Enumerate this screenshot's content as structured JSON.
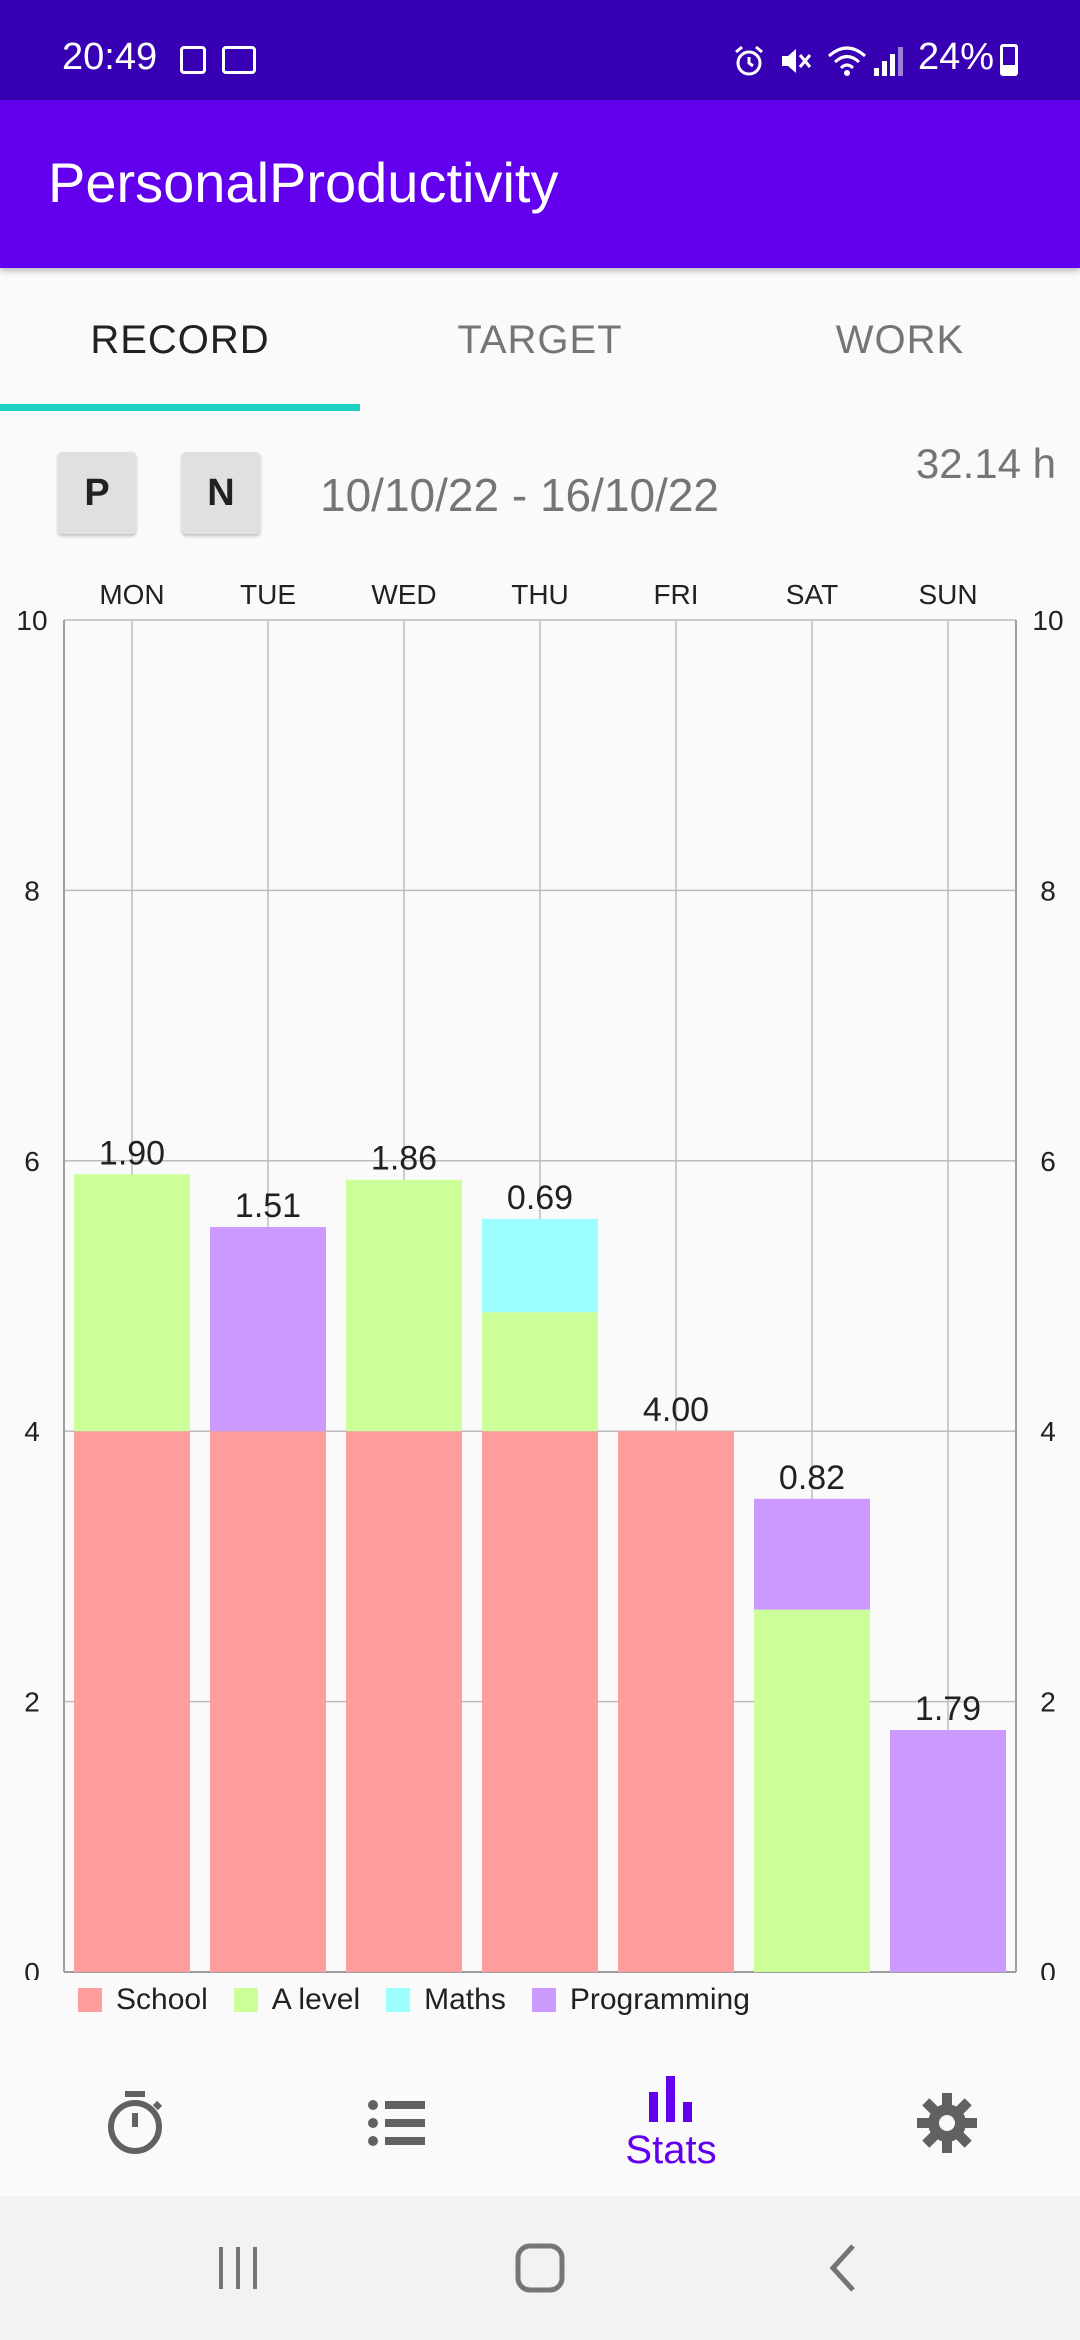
{
  "status_bar": {
    "time": "20:49",
    "battery": "24%"
  },
  "app_bar": {
    "title": "PersonalProductivity"
  },
  "tabs": [
    {
      "label": "RECORD",
      "active": true
    },
    {
      "label": "TARGET",
      "active": false
    },
    {
      "label": "WORK",
      "active": false
    }
  ],
  "week": {
    "prev_label": "P",
    "next_label": "N",
    "date_range": "10/10/22 - 16/10/22",
    "total": "32.14 h"
  },
  "chart_data": {
    "type": "bar",
    "stacked": true,
    "categories": [
      "MON",
      "TUE",
      "WED",
      "THU",
      "FRI",
      "SAT",
      "SUN"
    ],
    "ylim": [
      0,
      10
    ],
    "yticks": [
      "0",
      "2",
      "4",
      "6",
      "8",
      "10"
    ],
    "grid": true,
    "legend_placement": "bottom-left",
    "series": [
      {
        "name": "School",
        "color": "#ff9c9c",
        "values": [
          4.0,
          4.0,
          4.0,
          4.0,
          4.0,
          0,
          0
        ]
      },
      {
        "name": "A level",
        "color": "#ccff99",
        "values": [
          1.9,
          0,
          1.86,
          0.88,
          0,
          2.68,
          0
        ]
      },
      {
        "name": "Maths",
        "color": "#9cffff",
        "values": [
          0,
          0,
          0,
          0.69,
          0,
          0,
          0
        ]
      },
      {
        "name": "Programming",
        "color": "#cc99ff",
        "values": [
          0,
          1.51,
          0,
          0,
          0,
          0.82,
          1.79
        ]
      }
    ]
  },
  "bottom_nav": [
    {
      "icon": "timer-icon",
      "label": ""
    },
    {
      "icon": "list-icon",
      "label": ""
    },
    {
      "icon": "bar-chart-icon",
      "label": "Stats",
      "active": true
    },
    {
      "icon": "gear-icon",
      "label": ""
    }
  ],
  "colors": {
    "primary": "#6200ee",
    "primary_dark": "#3700b3",
    "tab_indicator": "#1ccfc0"
  }
}
